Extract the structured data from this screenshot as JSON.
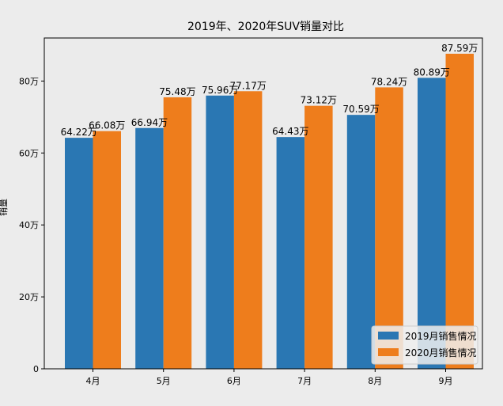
{
  "chart_data": {
    "type": "bar",
    "title": "2019年、2020年SUV销量对比",
    "xlabel": "",
    "ylabel": "销量",
    "categories": [
      "4月",
      "5月",
      "6月",
      "7月",
      "8月",
      "9月"
    ],
    "series": [
      {
        "name": "2019月销售情况",
        "color": "#2a77b3",
        "values": [
          64.22,
          66.94,
          75.96,
          64.43,
          70.59,
          80.89
        ],
        "labels": [
          "64.22万",
          "66.94万",
          "75.96万",
          "64.43万",
          "70.59万",
          "80.89万"
        ]
      },
      {
        "name": "2020月销售情况",
        "color": "#ee7d1c",
        "values": [
          66.08,
          75.48,
          77.17,
          73.12,
          78.24,
          87.59
        ],
        "labels": [
          "66.08万",
          "75.48万",
          "77.17万",
          "73.12万",
          "78.24万",
          "87.59万"
        ]
      }
    ],
    "ylim": [
      0,
      91.97
    ],
    "yticks": [
      0,
      20,
      40,
      60,
      80
    ],
    "ytick_labels": [
      "0",
      "20万",
      "40万",
      "60万",
      "80万"
    ],
    "grid": false,
    "legend_position": "bottom-right"
  }
}
